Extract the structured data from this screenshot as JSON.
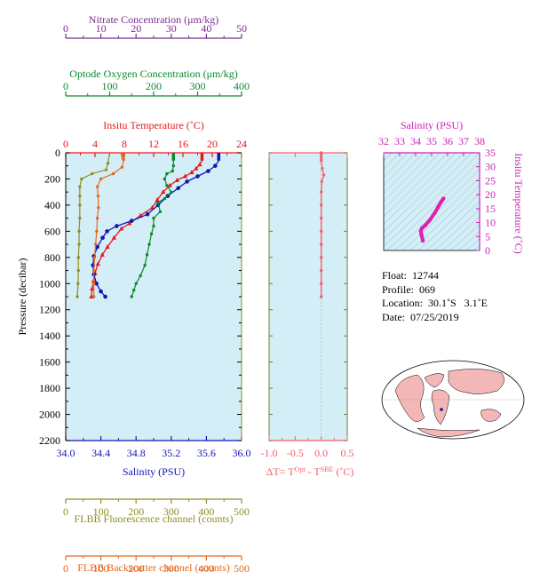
{
  "chart_data": [
    {
      "type": "line",
      "title": "",
      "top_axes": [
        {
          "label": "Nitrate Concentration (μm/kg)",
          "color": "#7b2d8e",
          "range": [
            0,
            50
          ],
          "ticks": [
            "0",
            "10",
            "20",
            "30",
            "40",
            "50"
          ]
        },
        {
          "label": "Optode Oxygen Concentration (μm/kg)",
          "color": "#0a8a2a",
          "range": [
            0,
            400
          ],
          "ticks": [
            "0",
            "100",
            "200",
            "300",
            "400"
          ]
        },
        {
          "label": "Insitu Temperature (˚C)",
          "color": "#e8181c",
          "range": [
            0,
            24
          ],
          "ticks": [
            "0",
            "4",
            "8",
            "12",
            "16",
            "20",
            "24"
          ]
        }
      ],
      "bottom_axes": [
        {
          "label": "Salinity (PSU)",
          "color": "#1414b4",
          "range": [
            34.0,
            36.0
          ],
          "ticks": [
            "34.0",
            "34.4",
            "34.8",
            "35.2",
            "35.6",
            "36.0"
          ]
        },
        {
          "label": "FLBB Fluorescence channel (counts)",
          "color": "#8f8f25",
          "range": [
            0,
            500
          ],
          "ticks": [
            "0",
            "100",
            "200",
            "300",
            "400",
            "500"
          ]
        },
        {
          "label": "FLBB Backscatter channel (counts)",
          "color": "#e06a1f",
          "range": [
            0,
            500
          ],
          "ticks": [
            "0",
            "100",
            "200",
            "300",
            "400",
            "500"
          ]
        }
      ],
      "ylabel": "Pressure (decibar)",
      "ylim": [
        2200,
        0
      ],
      "yticks": [
        "0",
        "200",
        "400",
        "600",
        "800",
        "1000",
        "1200",
        "1400",
        "1600",
        "1800",
        "2000",
        "2200"
      ],
      "series": [
        {
          "name": "Insitu Temperature",
          "color": "#e8181c",
          "points": [
            [
              18.6,
              0
            ],
            [
              18.6,
              60
            ],
            [
              18.3,
              90
            ],
            [
              17.8,
              120
            ],
            [
              17.2,
              150
            ],
            [
              16.3,
              180
            ],
            [
              15.2,
              210
            ],
            [
              14.2,
              250
            ],
            [
              13.3,
              300
            ],
            [
              12.5,
              360
            ],
            [
              11.8,
              420
            ],
            [
              10.2,
              480
            ],
            [
              8.7,
              540
            ],
            [
              7.6,
              580
            ],
            [
              6.6,
              650
            ],
            [
              5.7,
              720
            ],
            [
              5.0,
              780
            ],
            [
              4.4,
              850
            ],
            [
              4.0,
              920
            ],
            [
              3.8,
              980
            ],
            [
              3.6,
              1040
            ],
            [
              3.5,
              1100
            ]
          ]
        },
        {
          "name": "Salinity",
          "color": "#1414b4",
          "points": [
            [
              35.74,
              0
            ],
            [
              35.74,
              60
            ],
            [
              35.7,
              100
            ],
            [
              35.62,
              140
            ],
            [
              35.5,
              180
            ],
            [
              35.38,
              220
            ],
            [
              35.28,
              270
            ],
            [
              35.16,
              330
            ],
            [
              35.05,
              400
            ],
            [
              34.93,
              470
            ],
            [
              34.75,
              520
            ],
            [
              34.58,
              560
            ],
            [
              34.47,
              600
            ],
            [
              34.42,
              650
            ],
            [
              34.36,
              720
            ],
            [
              34.32,
              790
            ],
            [
              34.31,
              860
            ],
            [
              34.32,
              930
            ],
            [
              34.35,
              1000
            ],
            [
              34.4,
              1060
            ],
            [
              34.45,
              1100
            ]
          ]
        },
        {
          "name": "Optode Oxygen",
          "color": "#0a8a2a",
          "points": [
            [
              245,
              0
            ],
            [
              245,
              60
            ],
            [
              245,
              100
            ],
            [
              243,
              140
            ],
            [
              230,
              160
            ],
            [
              225,
              200
            ],
            [
              230,
              250
            ],
            [
              240,
              300
            ],
            [
              225,
              350
            ],
            [
              210,
              380
            ],
            [
              215,
              450
            ],
            [
              200,
              500
            ],
            [
              200,
              560
            ],
            [
              195,
              620
            ],
            [
              190,
              700
            ],
            [
              185,
              780
            ],
            [
              180,
              860
            ],
            [
              170,
              940
            ],
            [
              160,
              1000
            ],
            [
              155,
              1050
            ],
            [
              150,
              1100
            ]
          ]
        },
        {
          "name": "FLBB Fluorescence",
          "color": "#8f8f25",
          "points": [
            [
              125,
              0
            ],
            [
              120,
              80
            ],
            [
              115,
              130
            ],
            [
              75,
              160
            ],
            [
              45,
              200
            ],
            [
              40,
              260
            ],
            [
              40,
              330
            ],
            [
              40,
              400
            ],
            [
              40,
              500
            ],
            [
              38,
              600
            ],
            [
              38,
              700
            ],
            [
              36,
              800
            ],
            [
              36,
              900
            ],
            [
              35,
              1000
            ],
            [
              33,
              1100
            ]
          ]
        },
        {
          "name": "FLBB Backscatter",
          "color": "#e06a1f",
          "points": [
            [
              160,
              0
            ],
            [
              165,
              60
            ],
            [
              160,
              110
            ],
            [
              135,
              160
            ],
            [
              100,
              200
            ],
            [
              90,
              260
            ],
            [
              92,
              330
            ],
            [
              93,
              420
            ],
            [
              90,
              500
            ],
            [
              88,
              600
            ],
            [
              85,
              700
            ],
            [
              82,
              800
            ],
            [
              80,
              900
            ],
            [
              80,
              1000
            ],
            [
              80,
              1100
            ]
          ]
        }
      ]
    },
    {
      "type": "line",
      "title": "",
      "xlabel": "ΔT= T^Opt - T^SBE (˚C)",
      "xlim": [
        -1.0,
        0.5
      ],
      "xticks": [
        "-1.0",
        "-0.5",
        "0.0",
        "0.5"
      ],
      "ylim": [
        2200,
        0
      ],
      "color": "#f4606a",
      "points": [
        [
          0.0,
          0
        ],
        [
          0.0,
          60
        ],
        [
          0.02,
          120
        ],
        [
          0.05,
          170
        ],
        [
          0.01,
          220
        ],
        [
          0.0,
          300
        ],
        [
          0.0,
          400
        ],
        [
          0.0,
          500
        ],
        [
          0.0,
          600
        ],
        [
          0.0,
          700
        ],
        [
          0.0,
          800
        ],
        [
          0.0,
          900
        ],
        [
          0.0,
          1000
        ],
        [
          0.0,
          1100
        ]
      ]
    },
    {
      "type": "scatter",
      "title": "",
      "xlabel": "Salinity (PSU)",
      "ylabel": "Insitu Temperature (˚C)",
      "xlim": [
        32,
        38
      ],
      "ylim": [
        0,
        35
      ],
      "xticks": [
        "32",
        "33",
        "34",
        "35",
        "36",
        "37",
        "38"
      ],
      "yticks": [
        "0",
        "5",
        "10",
        "15",
        "20",
        "25",
        "30",
        "35"
      ],
      "color": "#e020b0",
      "points": [
        [
          34.45,
          3.5
        ],
        [
          34.36,
          5.7
        ],
        [
          34.32,
          7.0
        ],
        [
          34.4,
          8.0
        ],
        [
          34.6,
          9.0
        ],
        [
          34.9,
          11.0
        ],
        [
          35.2,
          13.5
        ],
        [
          35.4,
          15.5
        ],
        [
          35.6,
          17.5
        ],
        [
          35.74,
          18.6
        ]
      ]
    }
  ],
  "float_info": {
    "float": "Float:  12744",
    "profile": "Profile:  069",
    "location": "Location:  30.1˚S   3.1˚E",
    "date": "Date:  07/25/2019"
  }
}
